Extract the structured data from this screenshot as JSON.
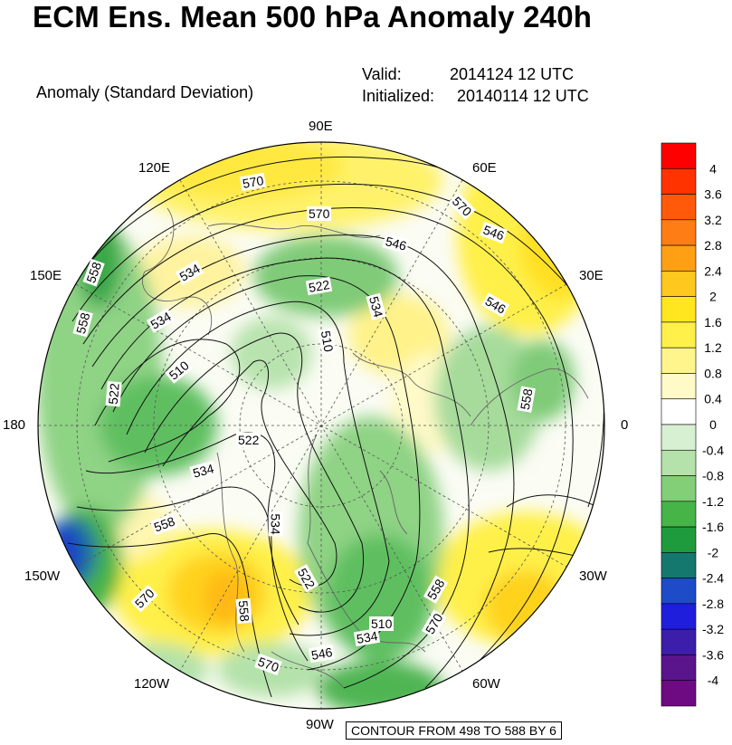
{
  "header": {
    "title": "ECM Ens. Mean 500 hPa Anomaly 240h",
    "subtitle": "Anomaly (Standard Deviation)",
    "valid_label": "Valid:",
    "valid_value": "2014124 12 UTC",
    "initialized_label": "Initialized:",
    "initialized_value": "20140114 12 UTC"
  },
  "map": {
    "projection": "north polar stereographic",
    "longitude_labels": {
      "top": "90E",
      "top_right": "60E",
      "right_upper": "30E",
      "right": "0",
      "right_lower": "30W",
      "bottom_right": "60W",
      "bottom": "90W",
      "bottom_left": "120W",
      "left_lower": "150W",
      "left": "180",
      "left_upper": "150E",
      "top_left": "120E"
    },
    "contour_labels": [
      "570",
      "558",
      "546",
      "570",
      "522",
      "534",
      "558",
      "534",
      "546",
      "570",
      "510",
      "510",
      "522",
      "522",
      "534",
      "534",
      "558",
      "546",
      "558",
      "522",
      "510",
      "534",
      "570",
      "546",
      "558",
      "570",
      "570",
      "558",
      "546",
      "534"
    ],
    "colors": {
      "positive_anomaly": "#ffee33",
      "strong_positive": "#ffbb11",
      "negative_anomaly": "#5fbf60",
      "strong_negative": "#1a9c3a",
      "extreme_negative": "#1a2ab4",
      "neutral": "#ffffff"
    }
  },
  "colorbar": {
    "levels": [
      "4",
      "3.6",
      "3.2",
      "2.8",
      "2.4",
      "2",
      "1.6",
      "1.2",
      "0.8",
      "0.4",
      "0",
      "-0.4",
      "-0.8",
      "-1.2",
      "-1.6",
      "-2",
      "-2.4",
      "-2.8",
      "-3.2",
      "-3.6",
      "-4"
    ],
    "colors": [
      "#ff0000",
      "#ff3300",
      "#ff5a0a",
      "#ff7d14",
      "#ffa014",
      "#ffc81e",
      "#ffe61e",
      "#fff04a",
      "#fff58c",
      "#fffac8",
      "#ffffff",
      "#d8f0d2",
      "#b4e2aa",
      "#82cf78",
      "#46b446",
      "#1e9b3c",
      "#14786e",
      "#1e4bc8",
      "#1e1edc",
      "#3c1eaa",
      "#5a148c",
      "#6e0a82"
    ]
  },
  "footer": {
    "contour_info": "CONTOUR FROM 498 TO 588 BY 6"
  }
}
